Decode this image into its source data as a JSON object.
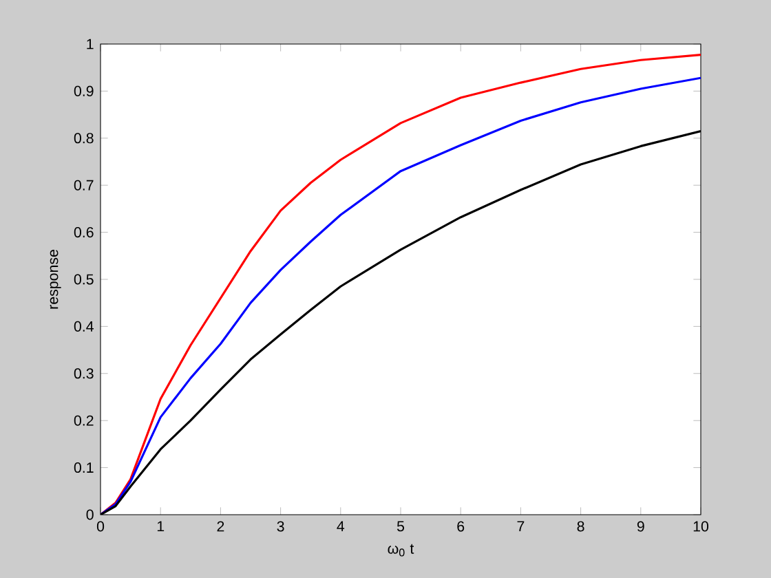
{
  "chart_data": {
    "type": "line",
    "xlabel": "ω$_{0}$ t",
    "ylabel": "response",
    "x": [
      0,
      0.25,
      0.5,
      1,
      1.5,
      2,
      2.5,
      3,
      3.5,
      4,
      5,
      6,
      7,
      8,
      9,
      10
    ],
    "series": [
      {
        "color": "#ff0000",
        "values": [
          0,
          0.025,
          0.075,
          0.246,
          0.36,
          0.46,
          0.56,
          0.646,
          0.705,
          0.754,
          0.832,
          0.886,
          0.918,
          0.947,
          0.966,
          0.977
        ]
      },
      {
        "color": "#0000ff",
        "values": [
          0,
          0.022,
          0.07,
          0.207,
          0.29,
          0.363,
          0.45,
          0.52,
          0.58,
          0.637,
          0.73,
          0.785,
          0.837,
          0.876,
          0.905,
          0.928
        ]
      },
      {
        "color": "#000000",
        "values": [
          0,
          0.018,
          0.06,
          0.139,
          0.2,
          0.266,
          0.33,
          0.383,
          0.435,
          0.485,
          0.563,
          0.632,
          0.69,
          0.744,
          0.783,
          0.815
        ]
      }
    ],
    "xlim": [
      0,
      10
    ],
    "ylim": [
      0,
      1
    ],
    "xticks": [
      0,
      1,
      2,
      3,
      4,
      5,
      6,
      7,
      8,
      9,
      10
    ],
    "yticks": [
      0,
      0.1,
      0.2,
      0.3,
      0.4,
      0.5,
      0.6,
      0.7,
      0.8,
      0.9,
      1
    ],
    "marker": "none",
    "line_style": "solid"
  }
}
